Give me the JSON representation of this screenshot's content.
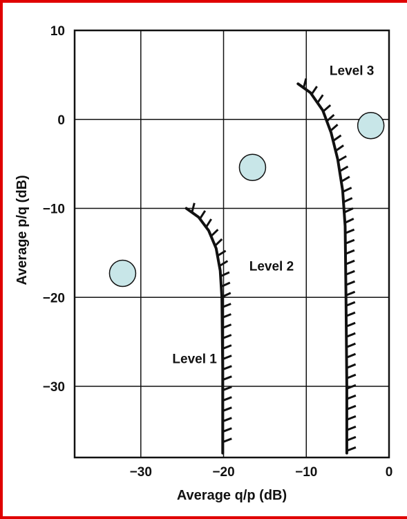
{
  "chart_data": {
    "type": "line",
    "xlabel": "Average q/p (dB)",
    "ylabel": "Average p/q (dB)",
    "xlim": [
      -38,
      0
    ],
    "ylim": [
      -38,
      10
    ],
    "x_ticks": [
      -30,
      -20,
      -10,
      0
    ],
    "x_tick_labels": [
      "−30",
      "−20",
      "−10",
      "0"
    ],
    "y_ticks": [
      10,
      0,
      -10,
      -20,
      -30
    ],
    "y_tick_labels": [
      "10",
      "0",
      "−10",
      "−20",
      "−30"
    ],
    "grid": true,
    "series": [
      {
        "name": "Level 1",
        "hatched": true,
        "x": [
          -24.5,
          -23,
          -21.8,
          -20.9,
          -20.4,
          -20.2,
          -20.1,
          -20.1
        ],
        "y": [
          -10,
          -11,
          -12.5,
          -14.5,
          -17,
          -20,
          -28,
          -37.5
        ]
      },
      {
        "name": "Level 3",
        "hatched": true,
        "x": [
          -11,
          -9.5,
          -8,
          -7,
          -6.2,
          -5.6,
          -5.3,
          -5.2,
          -5.1,
          -5.1
        ],
        "y": [
          4,
          3,
          1,
          -1.5,
          -4.5,
          -8,
          -12,
          -20,
          -30,
          -37.5
        ]
      }
    ],
    "markers": [
      {
        "x": -32.2,
        "y": -17.3
      },
      {
        "x": -16.5,
        "y": -5.4
      },
      {
        "x": -2.2,
        "y": -0.7
      }
    ],
    "annotations": [
      {
        "text": "Level 1",
        "x": -23.5,
        "y": -27.4
      },
      {
        "text": "Level 2",
        "x": -14.2,
        "y": -17.0
      },
      {
        "text": "Level 3",
        "x": -4.5,
        "y": 5.0
      }
    ],
    "colors": {
      "curve": "#111111",
      "marker_fill": "#c8e6e8",
      "marker_stroke": "#111111",
      "frame": "#e00000",
      "grid": "#111111"
    }
  }
}
